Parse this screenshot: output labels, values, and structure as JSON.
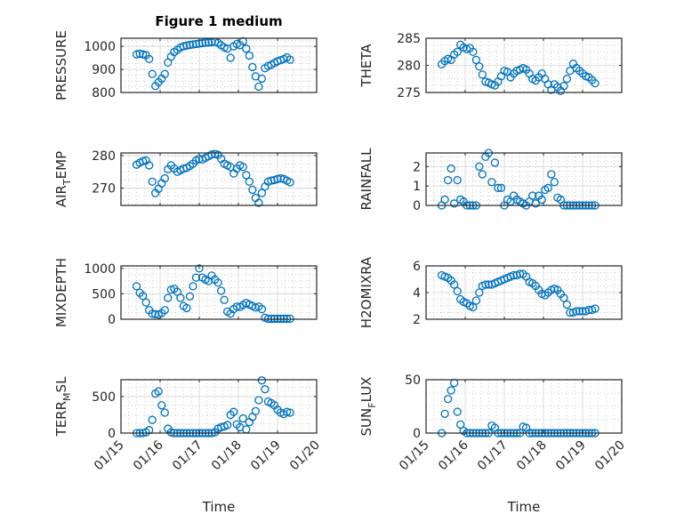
{
  "figure": {
    "title": "Figure 1 medium",
    "xlabel": "Time",
    "marker_color": "#0072BD"
  },
  "chart_data": {
    "type": "scatter",
    "x_units": "days since 01/15",
    "xlim": [
      0,
      5
    ],
    "xticks": [
      0,
      1,
      2,
      3,
      4,
      5
    ],
    "xtick_labels": [
      "01/15",
      "01/16",
      "01/17",
      "01/18",
      "01/19",
      "01/20"
    ],
    "xlabel": "Time",
    "grid": "major+minor",
    "x": [
      0.4,
      0.48,
      0.56,
      0.64,
      0.72,
      0.8,
      0.88,
      0.96,
      1.04,
      1.12,
      1.2,
      1.28,
      1.36,
      1.44,
      1.52,
      1.6,
      1.68,
      1.76,
      1.84,
      1.92,
      2.0,
      2.08,
      2.16,
      2.24,
      2.32,
      2.4,
      2.48,
      2.56,
      2.64,
      2.72,
      2.8,
      2.88,
      2.96,
      3.04,
      3.12,
      3.2,
      3.28,
      3.36,
      3.44,
      3.52,
      3.6,
      3.68,
      3.76,
      3.84,
      3.92,
      4.0,
      4.08,
      4.16,
      4.24,
      4.32
    ],
    "subplots": [
      {
        "ylabel": "PRESSURE",
        "ylim": [
          800,
          1035
        ],
        "yticks": [
          800,
          900,
          1000
        ],
        "ytick_labels": [
          "800",
          "900",
          "1000"
        ],
        "values": [
          965,
          968,
          965,
          962,
          945,
          880,
          828,
          845,
          860,
          880,
          930,
          955,
          975,
          985,
          995,
          1000,
          1003,
          1006,
          1008,
          1010,
          1012,
          1014,
          1016,
          1017,
          1018,
          1020,
          1015,
          1005,
          995,
          990,
          950,
          1000,
          1010,
          1005,
          1022,
          990,
          960,
          910,
          870,
          825,
          860,
          905,
          915,
          920,
          928,
          935,
          940,
          945,
          952,
          942
        ]
      },
      {
        "ylabel": "THETA",
        "ylim": [
          275,
          285
        ],
        "yticks": [
          275,
          280,
          285
        ],
        "ytick_labels": [
          "275",
          "280",
          "285"
        ],
        "values": [
          280.2,
          280.8,
          281.2,
          281.0,
          282.0,
          282.5,
          283.8,
          283.3,
          283.0,
          283.2,
          282.5,
          281.0,
          279.8,
          278.3,
          277.0,
          276.8,
          276.5,
          276.3,
          277.0,
          278.0,
          279.0,
          278.8,
          277.8,
          278.5,
          279.0,
          279.2,
          279.5,
          279.2,
          278.5,
          277.5,
          277.2,
          277.8,
          278.5,
          277.5,
          276.5,
          275.5,
          276.5,
          276.0,
          275.3,
          276.2,
          277.5,
          279.0,
          280.3,
          279.5,
          279.0,
          278.5,
          278.0,
          277.8,
          277.3,
          276.7
        ]
      },
      {
        "ylabel": "AIR_TEMP",
        "ylim": [
          264.7,
          280.8
        ],
        "yticks": [
          270,
          280
        ],
        "ytick_labels": [
          "270",
          "280"
        ],
        "values": [
          277.2,
          277.8,
          278.3,
          278.5,
          277.0,
          272.0,
          268.5,
          269.8,
          271.5,
          273.0,
          275.8,
          277.0,
          276.0,
          275.0,
          275.5,
          276.0,
          276.2,
          276.8,
          277.5,
          278.5,
          279.0,
          278.8,
          279.3,
          279.8,
          280.3,
          280.5,
          280.2,
          279.0,
          277.5,
          277.0,
          276.5,
          274.5,
          276.0,
          277.0,
          276.5,
          274.0,
          272.0,
          269.5,
          267.0,
          265.5,
          268.5,
          270.5,
          272.0,
          272.3,
          272.5,
          272.8,
          273.0,
          272.8,
          272.3,
          271.8
        ]
      },
      {
        "ylabel": "RAINFALL",
        "ylim": [
          0,
          2.7
        ],
        "yticks": [
          0,
          1,
          2
        ],
        "ytick_labels": [
          "0",
          "1",
          "2"
        ],
        "values": [
          0,
          0.3,
          1.3,
          1.9,
          0.1,
          1.3,
          0.3,
          0.2,
          0,
          0,
          0,
          0,
          2.0,
          1.6,
          2.5,
          2.7,
          1.2,
          2.2,
          0.9,
          0.9,
          0,
          0.3,
          0.2,
          0.5,
          0.3,
          0.2,
          0.1,
          0,
          0.2,
          0.5,
          0.1,
          0.5,
          0.3,
          0.8,
          0.9,
          1.6,
          1.2,
          0.4,
          0.3,
          0,
          0,
          0,
          0,
          0,
          0,
          0,
          0,
          0,
          0,
          0
        ]
      },
      {
        "ylabel": "MIXDEPTH",
        "ylim": [
          0,
          1050
        ],
        "yticks": [
          0,
          500,
          1000
        ],
        "ytick_labels": [
          "0",
          "500",
          "1000"
        ],
        "values": [
          650,
          520,
          460,
          330,
          180,
          110,
          100,
          90,
          120,
          180,
          420,
          580,
          600,
          540,
          420,
          260,
          220,
          450,
          650,
          820,
          1000,
          820,
          780,
          750,
          860,
          780,
          720,
          560,
          380,
          150,
          110,
          200,
          250,
          240,
          280,
          320,
          290,
          260,
          230,
          250,
          200,
          30,
          10,
          10,
          10,
          10,
          10,
          10,
          10,
          10
        ]
      },
      {
        "ylabel": "H2OMIXRA",
        "ylim": [
          2,
          6
        ],
        "yticks": [
          2,
          4,
          6
        ],
        "ytick_labels": [
          "2",
          "4",
          "6"
        ],
        "values": [
          5.3,
          5.2,
          5.1,
          4.9,
          4.6,
          4.1,
          3.5,
          3.3,
          3.2,
          3.0,
          2.9,
          3.4,
          4.0,
          4.5,
          4.6,
          4.6,
          4.6,
          4.7,
          4.8,
          4.9,
          5.0,
          5.1,
          5.2,
          5.3,
          5.3,
          5.4,
          5.4,
          5.2,
          4.8,
          4.7,
          4.5,
          4.2,
          3.9,
          3.8,
          4.0,
          4.2,
          4.3,
          4.2,
          3.9,
          3.6,
          3.1,
          2.5,
          2.5,
          2.6,
          2.6,
          2.6,
          2.6,
          2.7,
          2.7,
          2.8
        ]
      },
      {
        "ylabel": "TERR_MSL",
        "ylim": [
          0,
          730
        ],
        "yticks": [
          0,
          500
        ],
        "ytick_labels": [
          "0",
          "500"
        ],
        "values": [
          0,
          0,
          0,
          10,
          40,
          180,
          540,
          570,
          380,
          280,
          60,
          10,
          0,
          0,
          0,
          0,
          0,
          0,
          0,
          0,
          0,
          0,
          0,
          0,
          0,
          10,
          60,
          80,
          90,
          110,
          250,
          290,
          120,
          80,
          200,
          50,
          150,
          220,
          300,
          450,
          720,
          600,
          430,
          410,
          380,
          320,
          280,
          260,
          290,
          280
        ]
      },
      {
        "ylabel": "SUN_FLUX",
        "ylim": [
          0,
          50
        ],
        "yticks": [
          0,
          50
        ],
        "ytick_labels": [
          "0",
          "50"
        ],
        "values": [
          0,
          18,
          32,
          40,
          47,
          20,
          8,
          2,
          0,
          0,
          0,
          0,
          0,
          0,
          0,
          0,
          7,
          5,
          0,
          0,
          0,
          0,
          0,
          0,
          0,
          0,
          6,
          5,
          0,
          0,
          0,
          0,
          0,
          0,
          0,
          0,
          0,
          0,
          0,
          0,
          0,
          0,
          0,
          0,
          0,
          0,
          0,
          0,
          0,
          0
        ]
      }
    ]
  }
}
